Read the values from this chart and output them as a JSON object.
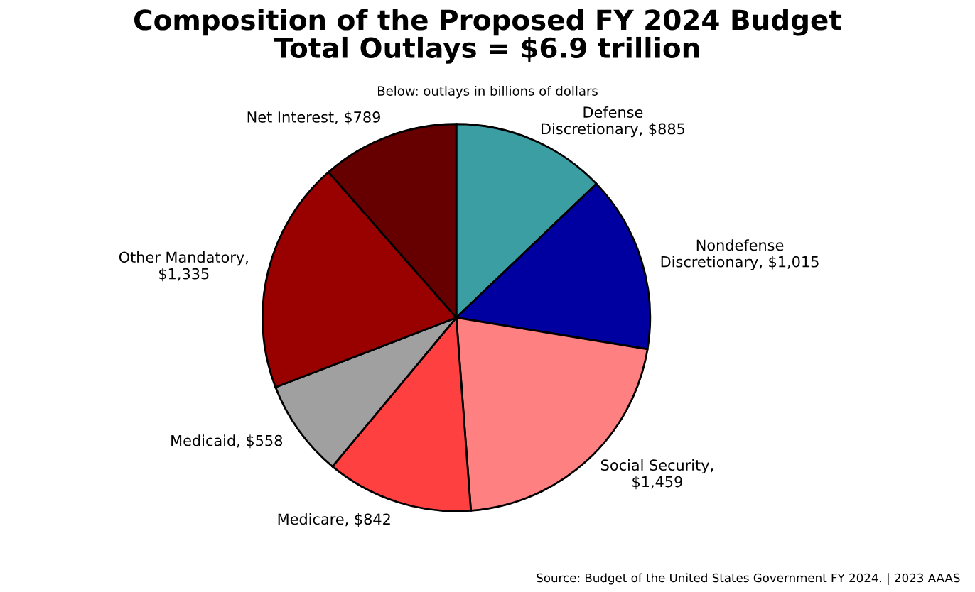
{
  "chart_data": {
    "type": "pie",
    "title": "Composition of the Proposed FY 2024 Budget\nTotal Outlays = $6.9 trillion",
    "subtitle": "Below: outlays in billions of dollars",
    "categories": [
      "Defense\nDiscretionary, $885",
      "Nondefense\nDiscretionary, $1,015",
      "Social Security,\n$1,459",
      "Medicare, $842",
      "Medicaid, $558",
      "Other Mandatory,\n$1,335",
      "Net Interest, $789"
    ],
    "values": [
      885,
      1015,
      1459,
      842,
      558,
      1335,
      789
    ],
    "colors": [
      "#3a9ea3",
      "#0000a0",
      "#ff8080",
      "#ff4040",
      "#a0a0a0",
      "#990000",
      "#660000"
    ],
    "legend": false,
    "annotations": [
      "Source: Budget of the United States Government FY 2024. | 2023 AAAS"
    ]
  }
}
